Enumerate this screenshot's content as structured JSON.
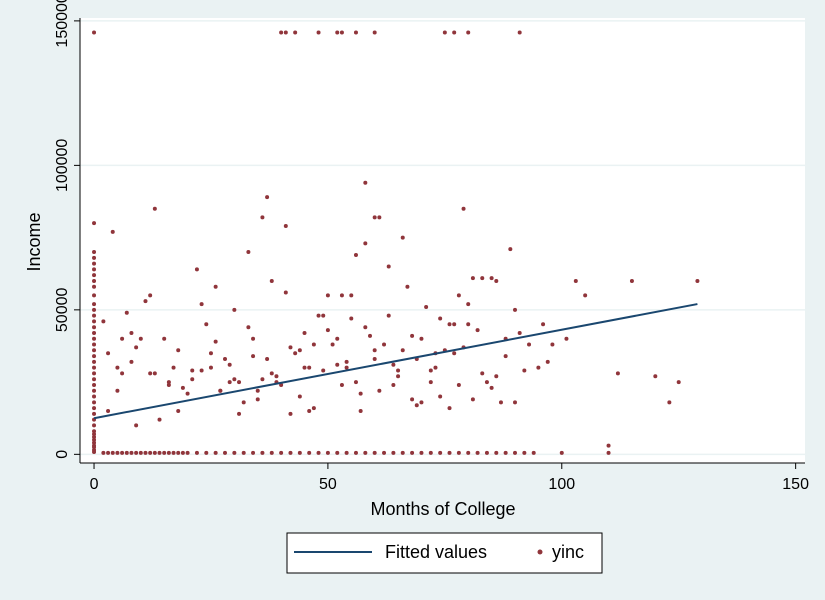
{
  "chart_data": {
    "type": "scatter",
    "xlabel": "Months of College",
    "ylabel": "Income",
    "xlim": [
      -3,
      152
    ],
    "ylim": [
      -3000,
      151000
    ],
    "xticks": [
      "0",
      "50",
      "100",
      "150"
    ],
    "yticks": [
      "0",
      "50000",
      "100000",
      "150000"
    ],
    "grid": true,
    "legend_position": "bottom-center",
    "series": [
      {
        "name": "Fitted values",
        "kind": "line",
        "color": "#1a476f",
        "x": [
          0,
          129
        ],
        "y": [
          12500,
          52000
        ]
      },
      {
        "name": "yinc",
        "kind": "scatter",
        "color": "#90353b",
        "x": [
          0,
          0,
          0,
          0,
          0,
          0,
          0,
          0,
          0,
          0,
          0,
          0,
          0,
          0,
          0,
          0,
          0,
          0,
          0,
          0,
          0,
          0,
          0,
          0,
          0,
          0,
          0,
          0,
          0,
          0,
          0,
          0,
          0,
          0,
          0,
          0,
          0,
          0,
          0,
          0,
          2,
          3,
          4,
          5,
          6,
          7,
          8,
          9,
          10,
          11,
          12,
          13,
          14,
          15,
          16,
          17,
          18,
          19,
          20,
          22,
          24,
          26,
          28,
          30,
          32,
          34,
          36,
          38,
          40,
          42,
          44,
          46,
          48,
          50,
          52,
          54,
          56,
          58,
          60,
          62,
          64,
          66,
          68,
          70,
          72,
          74,
          76,
          78,
          80,
          82,
          84,
          86,
          88,
          90,
          92,
          94,
          100,
          110,
          40,
          41,
          43,
          48,
          52,
          53,
          56,
          60,
          75,
          77,
          80,
          91,
          0,
          13,
          37,
          58,
          60,
          79,
          36,
          41,
          4,
          2,
          16,
          7,
          12,
          5,
          9,
          3,
          6,
          8,
          10,
          20,
          22,
          25,
          28,
          30,
          33,
          35,
          38,
          40,
          42,
          45,
          47,
          50,
          52,
          55,
          57,
          60,
          62,
          65,
          68,
          70,
          72,
          75,
          78,
          80,
          83,
          85,
          88,
          90,
          18,
          21,
          24,
          27,
          29,
          31,
          34,
          37,
          39,
          41,
          44,
          46,
          49,
          51,
          53,
          56,
          58,
          61,
          63,
          66,
          69,
          71,
          74,
          76,
          79,
          81,
          84,
          87,
          89,
          92,
          15,
          19,
          23,
          26,
          32,
          36,
          43,
          48,
          54,
          59,
          64,
          67,
          73,
          77,
          82,
          86,
          91,
          95,
          98,
          101,
          105,
          112,
          115,
          120,
          123,
          96,
          103,
          110,
          125,
          129,
          14,
          17,
          26,
          30,
          35,
          44,
          47,
          52,
          55,
          58,
          63,
          66,
          70,
          74,
          78,
          83,
          88,
          93,
          97,
          3,
          6,
          9,
          11,
          13,
          16,
          21,
          25,
          29,
          33,
          38,
          42,
          46,
          50,
          54,
          57,
          61,
          65,
          69,
          73,
          76,
          80,
          85,
          90,
          5,
          8,
          12,
          18,
          23,
          27,
          31,
          34,
          39,
          45,
          49,
          53,
          56,
          60,
          64,
          68,
          72,
          77,
          81,
          86
        ],
        "y": [
          800,
          1500,
          2500,
          4000,
          6000,
          8000,
          10000,
          12000,
          14000,
          16000,
          18000,
          20000,
          22000,
          24000,
          26000,
          28000,
          30000,
          32000,
          34000,
          36000,
          38000,
          40000,
          42000,
          44000,
          46000,
          48000,
          50000,
          52000,
          55000,
          58000,
          60000,
          62000,
          64000,
          66000,
          68000,
          70000,
          80000,
          3000,
          5000,
          7000,
          500,
          500,
          500,
          500,
          500,
          500,
          500,
          500,
          500,
          500,
          500,
          500,
          500,
          500,
          500,
          500,
          500,
          500,
          500,
          500,
          500,
          500,
          500,
          500,
          500,
          500,
          500,
          500,
          500,
          500,
          500,
          500,
          500,
          500,
          500,
          500,
          500,
          500,
          500,
          500,
          500,
          500,
          500,
          500,
          500,
          500,
          500,
          500,
          500,
          500,
          500,
          500,
          500,
          500,
          500,
          500,
          500,
          500,
          146000,
          146000,
          146000,
          146000,
          146000,
          146000,
          146000,
          146000,
          146000,
          146000,
          146000,
          146000,
          146000,
          85000,
          89000,
          94000,
          82000,
          85000,
          82000,
          79000,
          77000,
          46000,
          25000,
          49000,
          55000,
          30000,
          37000,
          35000,
          28000,
          42000,
          40000,
          21000,
          64000,
          30000,
          33000,
          26000,
          44000,
          19000,
          28000,
          24000,
          37000,
          42000,
          16000,
          55000,
          31000,
          47000,
          21000,
          33000,
          38000,
          27000,
          19000,
          40000,
          29000,
          36000,
          24000,
          52000,
          28000,
          23000,
          34000,
          18000,
          36000,
          29000,
          45000,
          22000,
          31000,
          25000,
          40000,
          33000,
          27000,
          56000,
          36000,
          30000,
          29000,
          38000,
          24000,
          69000,
          44000,
          22000,
          48000,
          36000,
          33000,
          51000,
          20000,
          45000,
          37000,
          61000,
          25000,
          18000,
          71000,
          29000,
          40000,
          23000,
          52000,
          39000,
          18000,
          26000,
          35000,
          48000,
          32000,
          41000,
          24000,
          58000,
          30000,
          35000,
          43000,
          27000,
          42000,
          30000,
          38000,
          40000,
          55000,
          28000,
          60000,
          27000,
          18000,
          45000,
          60000,
          3000,
          25000,
          60000,
          12000,
          30000,
          58000,
          50000,
          22000,
          20000,
          38000,
          40000,
          55000,
          73000,
          65000,
          75000,
          18000,
          47000,
          55000,
          61000,
          40000,
          38000,
          32000,
          15000,
          40000,
          10000,
          53000,
          28000,
          24000,
          26000,
          35000,
          25000,
          70000,
          60000,
          14000,
          15000,
          43000,
          30000,
          15000,
          82000,
          29000,
          17000,
          35000,
          16000,
          45000,
          61000,
          50000,
          22000,
          32000,
          28000,
          15000,
          29000,
          22000,
          14000,
          34000,
          25000,
          30000,
          48000,
          55000,
          25000,
          36000,
          31000,
          41000,
          25000,
          45000,
          19000,
          60000
        ]
      }
    ]
  }
}
